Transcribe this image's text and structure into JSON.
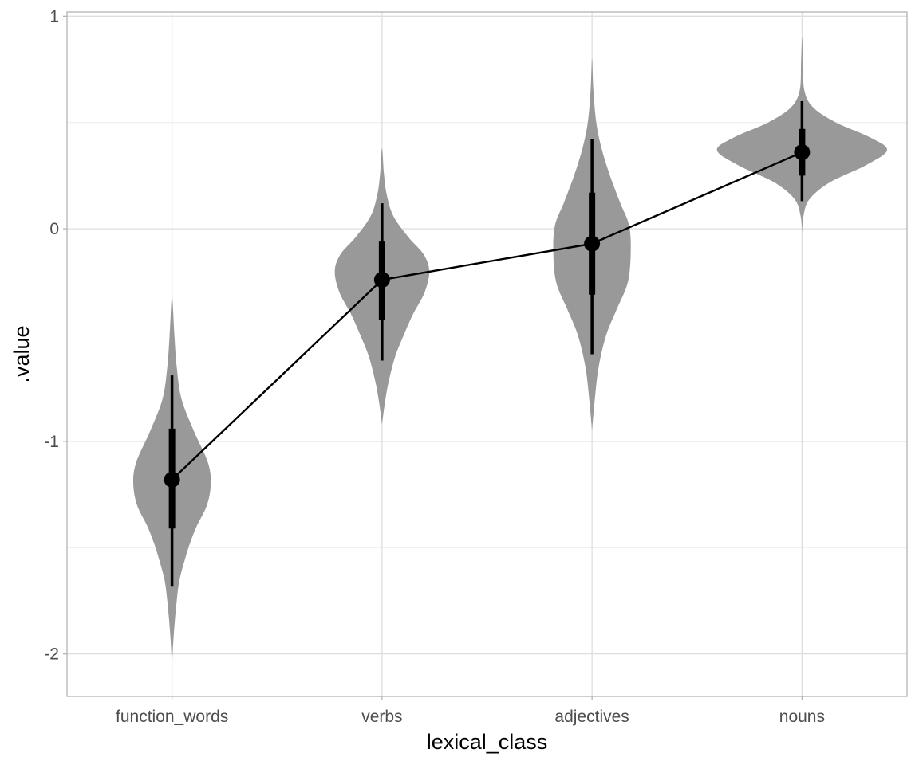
{
  "chart_data": {
    "type": "violin",
    "title": "",
    "xlabel": "lexical_class",
    "ylabel": ".value",
    "ylim": [
      -2.2,
      1.02
    ],
    "yticks": [
      -2,
      -1,
      0,
      1
    ],
    "ytick_labels": [
      "-2",
      "-1",
      "0",
      "1"
    ],
    "y_minor_gridlines": [
      -1.5,
      -0.5,
      0.5
    ],
    "grid": true,
    "categories": [
      "function_words",
      "verbs",
      "adjectives",
      "nouns"
    ],
    "point_summary": {
      "median": [
        -1.18,
        -0.24,
        -0.07,
        0.36
      ],
      "interval_inner": [
        [
          -1.41,
          -0.94
        ],
        [
          -0.43,
          -0.06
        ],
        [
          -0.31,
          0.17
        ],
        [
          0.25,
          0.47
        ]
      ],
      "interval_outer": [
        [
          -1.68,
          -0.69
        ],
        [
          -0.62,
          0.12
        ],
        [
          -0.59,
          0.42
        ],
        [
          0.13,
          0.6
        ]
      ]
    },
    "density": [
      {
        "category": "function_words",
        "profile": [
          [
            -2.05,
            0.0
          ],
          [
            -1.9,
            0.02
          ],
          [
            -1.75,
            0.05
          ],
          [
            -1.65,
            0.08
          ],
          [
            -1.55,
            0.14
          ],
          [
            -1.48,
            0.19
          ],
          [
            -1.4,
            0.26
          ],
          [
            -1.3,
            0.37
          ],
          [
            -1.2,
            0.41
          ],
          [
            -1.1,
            0.38
          ],
          [
            -0.95,
            0.23
          ],
          [
            -0.8,
            0.1
          ],
          [
            -0.65,
            0.05
          ],
          [
            -0.5,
            0.025
          ],
          [
            -0.32,
            0.0
          ]
        ]
      },
      {
        "category": "verbs",
        "profile": [
          [
            -0.92,
            0.0
          ],
          [
            -0.82,
            0.03
          ],
          [
            -0.72,
            0.07
          ],
          [
            -0.6,
            0.14
          ],
          [
            -0.5,
            0.23
          ],
          [
            -0.4,
            0.33
          ],
          [
            -0.3,
            0.45
          ],
          [
            -0.2,
            0.5
          ],
          [
            -0.12,
            0.44
          ],
          [
            -0.04,
            0.28
          ],
          [
            0.06,
            0.12
          ],
          [
            0.16,
            0.05
          ],
          [
            0.26,
            0.02
          ],
          [
            0.38,
            0.0
          ]
        ]
      },
      {
        "category": "adjectives",
        "profile": [
          [
            -0.95,
            0.0
          ],
          [
            -0.8,
            0.03
          ],
          [
            -0.65,
            0.07
          ],
          [
            -0.5,
            0.15
          ],
          [
            -0.38,
            0.26
          ],
          [
            -0.25,
            0.38
          ],
          [
            -0.1,
            0.41
          ],
          [
            0.02,
            0.39
          ],
          [
            0.12,
            0.3
          ],
          [
            0.25,
            0.19
          ],
          [
            0.38,
            0.1
          ],
          [
            0.5,
            0.045
          ],
          [
            0.65,
            0.015
          ],
          [
            0.8,
            0.0
          ]
        ]
      },
      {
        "category": "nouns",
        "profile": [
          [
            -0.02,
            0.0
          ],
          [
            0.06,
            0.015
          ],
          [
            0.14,
            0.08
          ],
          [
            0.22,
            0.3
          ],
          [
            0.3,
            0.68
          ],
          [
            0.37,
            0.9
          ],
          [
            0.43,
            0.72
          ],
          [
            0.5,
            0.36
          ],
          [
            0.57,
            0.12
          ],
          [
            0.65,
            0.025
          ],
          [
            0.78,
            0.01
          ],
          [
            0.9,
            0.0
          ]
        ]
      }
    ]
  }
}
